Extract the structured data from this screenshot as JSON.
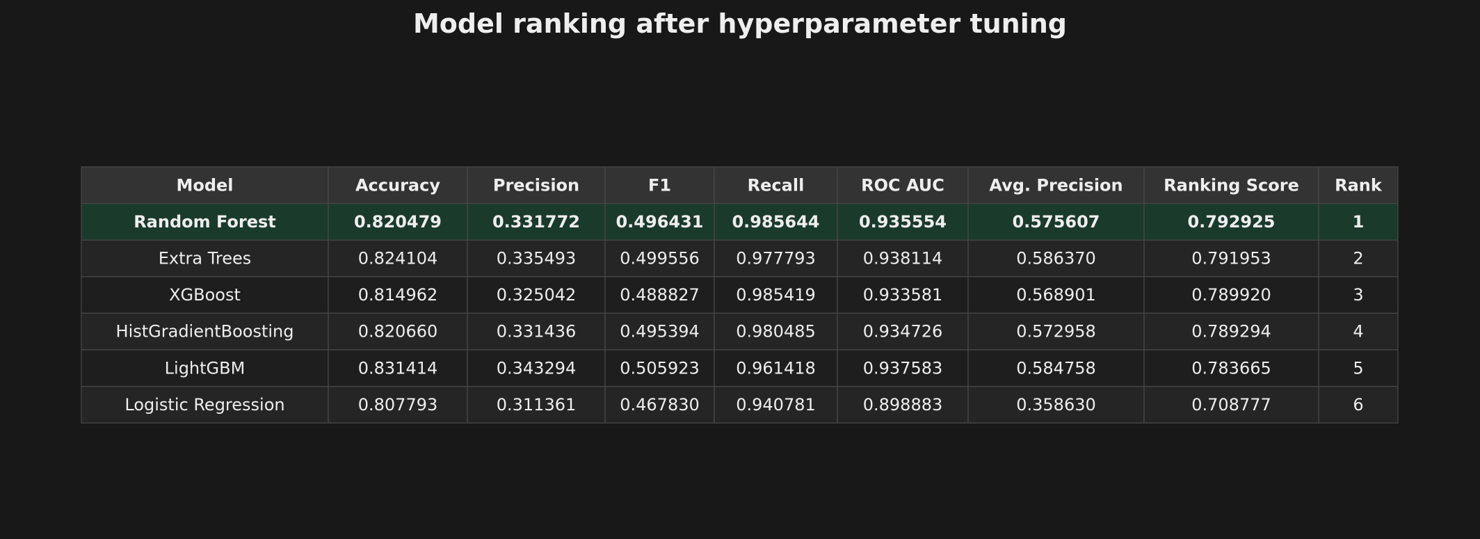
{
  "title": "Model ranking after hyperparameter tuning",
  "table": {
    "columns": [
      "Model",
      "Accuracy",
      "Precision",
      "F1",
      "Recall",
      "ROC AUC",
      "Avg. Precision",
      "Ranking Score",
      "Rank"
    ],
    "rows": [
      [
        "Random Forest",
        "0.820479",
        "0.331772",
        "0.496431",
        "0.985644",
        "0.935554",
        "0.575607",
        "0.792925",
        "1"
      ],
      [
        "Extra Trees",
        "0.824104",
        "0.335493",
        "0.499556",
        "0.977793",
        "0.938114",
        "0.586370",
        "0.791953",
        "2"
      ],
      [
        "XGBoost",
        "0.814962",
        "0.325042",
        "0.488827",
        "0.985419",
        "0.933581",
        "0.568901",
        "0.789920",
        "3"
      ],
      [
        "HistGradientBoosting",
        "0.820660",
        "0.331436",
        "0.495394",
        "0.980485",
        "0.934726",
        "0.572958",
        "0.789294",
        "4"
      ],
      [
        "LightGBM",
        "0.831414",
        "0.343294",
        "0.505923",
        "0.961418",
        "0.937583",
        "0.584758",
        "0.783665",
        "5"
      ],
      [
        "Logistic Regression",
        "0.807793",
        "0.311361",
        "0.467830",
        "0.940781",
        "0.898883",
        "0.358630",
        "0.708777",
        "6"
      ]
    ]
  }
}
